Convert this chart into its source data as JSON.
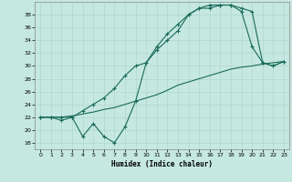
{
  "xlabel": "Humidex (Indice chaleur)",
  "bg_color": "#c5e8e0",
  "grid_color": "#b0d8ce",
  "line_color": "#1a6b5a",
  "xlim": [
    -0.5,
    23.5
  ],
  "ylim": [
    17,
    40
  ],
  "yticks": [
    18,
    20,
    22,
    24,
    26,
    28,
    30,
    32,
    34,
    36,
    38
  ],
  "xticks": [
    0,
    1,
    2,
    3,
    4,
    5,
    6,
    7,
    8,
    9,
    10,
    11,
    12,
    13,
    14,
    15,
    16,
    17,
    18,
    19,
    20,
    21,
    22,
    23
  ],
  "line1_x": [
    0,
    1,
    2,
    3,
    4,
    5,
    6,
    7,
    8,
    9,
    10,
    11,
    12,
    13,
    14,
    15,
    16,
    17,
    18,
    19,
    20,
    21,
    22,
    23
  ],
  "line1_y": [
    22.0,
    22.0,
    22.0,
    22.2,
    22.5,
    22.8,
    23.2,
    23.5,
    24.0,
    24.5,
    25.0,
    25.5,
    26.2,
    27.0,
    27.5,
    28.0,
    28.5,
    29.0,
    29.5,
    29.8,
    30.0,
    30.3,
    30.5,
    30.7
  ],
  "line2_x": [
    0,
    1,
    2,
    3,
    4,
    5,
    6,
    7,
    8,
    9,
    10,
    11,
    12,
    13,
    14,
    15,
    16,
    17,
    18,
    19,
    20,
    21,
    22,
    23
  ],
  "line2_y": [
    22.0,
    22.0,
    21.5,
    22.0,
    19.0,
    21.0,
    19.0,
    18.0,
    20.5,
    24.5,
    30.5,
    33.0,
    35.0,
    36.5,
    38.0,
    39.0,
    39.0,
    39.5,
    39.5,
    38.5,
    33.0,
    30.5,
    30.0,
    30.7
  ],
  "line3_x": [
    0,
    1,
    2,
    3,
    4,
    5,
    6,
    7,
    8,
    9,
    10,
    11,
    12,
    13,
    14,
    15,
    16,
    17,
    18,
    19,
    20,
    21,
    22,
    23
  ],
  "line3_y": [
    22.0,
    22.0,
    22.0,
    22.0,
    23.0,
    24.0,
    25.0,
    26.5,
    28.5,
    30.0,
    30.5,
    32.5,
    34.0,
    35.5,
    38.0,
    39.0,
    39.5,
    39.5,
    39.5,
    39.0,
    38.5,
    30.5,
    30.0,
    30.7
  ]
}
